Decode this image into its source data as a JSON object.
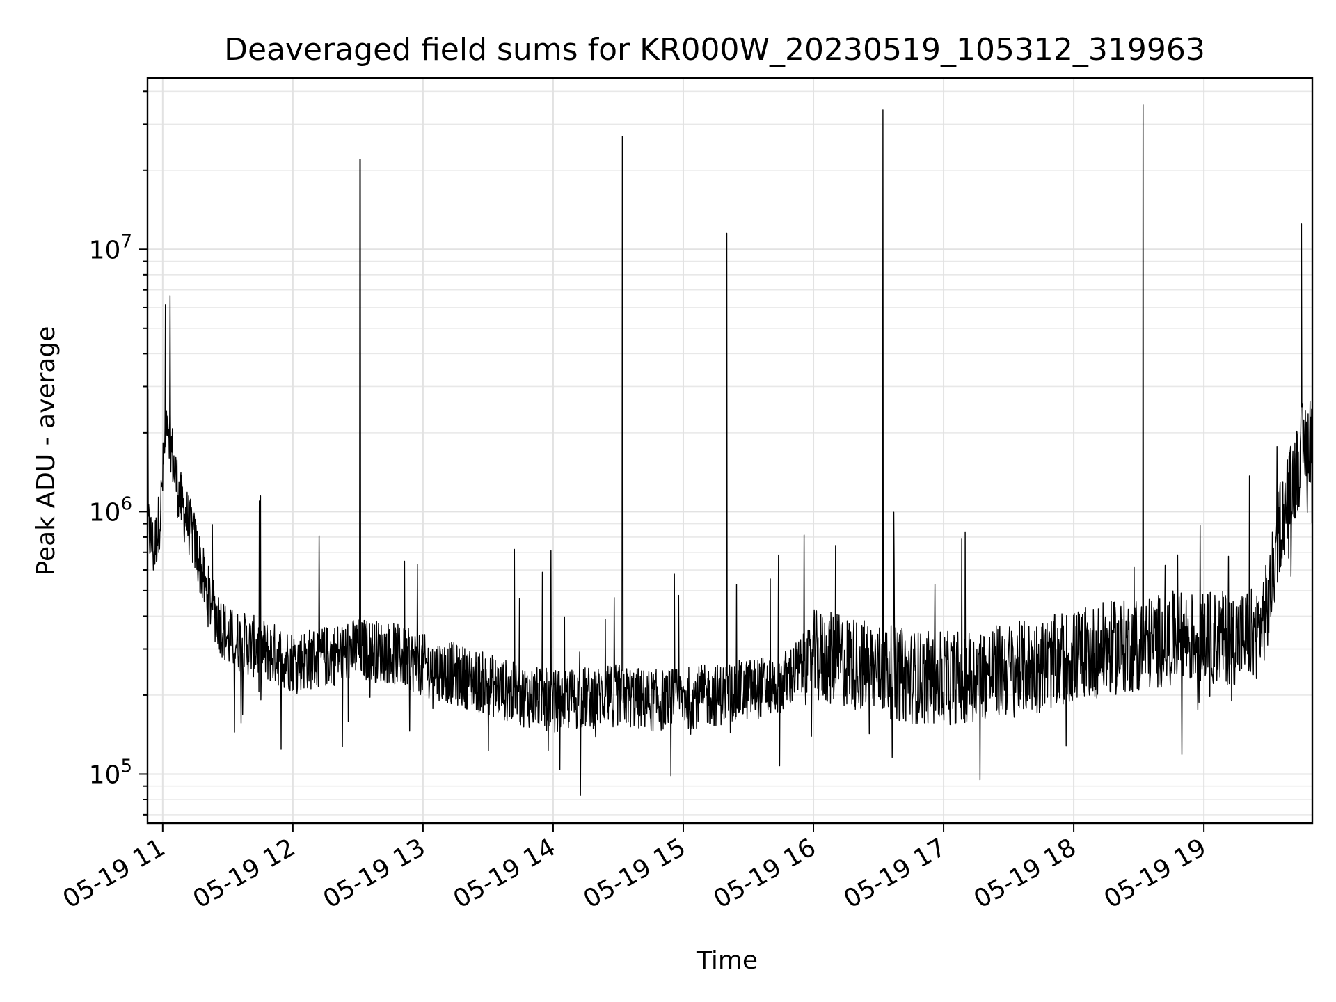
{
  "chart_data": {
    "type": "line",
    "title": "Deaveraged field sums for KR000W_20230519_105312_319963",
    "xlabel": "Time",
    "ylabel": "Peak ADU - average",
    "yscale": "log",
    "ylim": [
      65000,
      45000000
    ],
    "xlim": [
      "2023-05-19 10:53",
      "2023-05-19 19:50"
    ],
    "grid": "major and minor",
    "x_ticks": [
      "05-19 11",
      "05-19 12",
      "05-19 13",
      "05-19 14",
      "05-19 15",
      "05-19 16",
      "05-19 17",
      "05-19 18",
      "05-19 19"
    ],
    "y_ticks": [
      {
        "base": "10",
        "exp": "5",
        "value": 100000
      },
      {
        "base": "10",
        "exp": "6",
        "value": 1000000
      },
      {
        "base": "10",
        "exp": "7",
        "value": 10000000
      }
    ],
    "line_color": "#000000",
    "series": [
      {
        "x": [
          "2023-05-19 10:53",
          "2023-05-19 10:56",
          "2023-05-19 10:59",
          "2023-05-19 11:02",
          "2023-05-19 11:05",
          "2023-05-19 11:08",
          "2023-05-19 11:12",
          "2023-05-19 11:16",
          "2023-05-19 11:20",
          "2023-05-19 11:25",
          "2023-05-19 11:30",
          "2023-05-19 11:40",
          "2023-05-19 11:50",
          "2023-05-19 12:00",
          "2023-05-19 12:15",
          "2023-05-19 12:30",
          "2023-05-19 12:45",
          "2023-05-19 13:00",
          "2023-05-19 13:15",
          "2023-05-19 13:30",
          "2023-05-19 13:45",
          "2023-05-19 14:00",
          "2023-05-19 14:15",
          "2023-05-19 14:30",
          "2023-05-19 14:45",
          "2023-05-19 15:00",
          "2023-05-19 15:15",
          "2023-05-19 15:30",
          "2023-05-19 15:45",
          "2023-05-19 16:00",
          "2023-05-19 16:15",
          "2023-05-19 16:30",
          "2023-05-19 16:45",
          "2023-05-19 17:00",
          "2023-05-19 17:15",
          "2023-05-19 17:30",
          "2023-05-19 17:45",
          "2023-05-19 18:00",
          "2023-05-19 18:15",
          "2023-05-19 18:30",
          "2023-05-19 18:45",
          "2023-05-19 19:00",
          "2023-05-19 19:15",
          "2023-05-19 19:25",
          "2023-05-19 19:30",
          "2023-05-19 19:35",
          "2023-05-19 19:40",
          "2023-05-19 19:45",
          "2023-05-19 19:50"
        ],
        "values": [
          900000,
          700000,
          1000000,
          2500000,
          1500000,
          1100000,
          900000,
          700000,
          500000,
          400000,
          330000,
          310000,
          290000,
          270000,
          280000,
          300000,
          290000,
          260000,
          240000,
          220000,
          200000,
          190000,
          195000,
          200000,
          190000,
          195000,
          200000,
          210000,
          220000,
          280000,
          270000,
          250000,
          235000,
          230000,
          240000,
          250000,
          260000,
          280000,
          300000,
          310000,
          330000,
          330000,
          330000,
          350000,
          450000,
          900000,
          1200000,
          1700000,
          2000000
        ]
      }
    ],
    "spikes": [
      {
        "x": "2023-05-19 12:31",
        "value": 22000000
      },
      {
        "x": "2023-05-19 14:32",
        "value": 27000000
      },
      {
        "x": "2023-05-19 15:20",
        "value": 11500000
      },
      {
        "x": "2023-05-19 16:32",
        "value": 34000000
      },
      {
        "x": "2023-05-19 18:32",
        "value": 35500000
      },
      {
        "x": "2023-05-19 19:45",
        "value": 12500000
      }
    ]
  }
}
